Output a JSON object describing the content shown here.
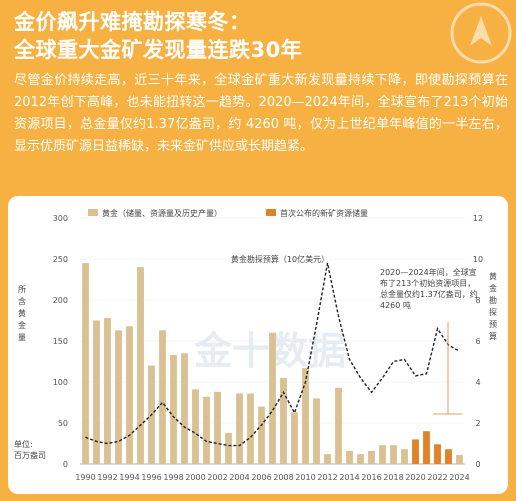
{
  "headline": {
    "line1": "金价飙升难掩勘探寒冬：",
    "line2": "全球重大金矿发现量连跌30年"
  },
  "lead_text": "尽管金价持续走高，近三十年来，全球金矿重大新发现量持续下降，即使勘探预算在2012年创下高峰，也未能扭转这一趋势。2020—2024年间，全球宣布了213个初始资源项目，总金量仅约1.37亿盎司，约 4260 吨，仅为上世纪单年峰值的一半左右，显示优质矿源日益稀缺，未来金矿供应或长期趋紧。",
  "watermark": "金十数据",
  "colors": {
    "background": "#f7b143",
    "bar_gold": "#d9c193",
    "bar_first": "#e0812b",
    "line": "#222222"
  },
  "chart_data": {
    "type": "bar",
    "legend": {
      "gold": "黄金（储量、资源量及历史产量）",
      "first": "首次公布的新矿资源储量"
    },
    "left_axis_label": "所含黄金量",
    "unit_label_1": "单位:",
    "unit_label_2": "百万盎司",
    "right_axis_label": "黄金勘探预算",
    "line_label": "黄金勘探预算（10亿美元）",
    "annotation_lines": [
      "2020—2024年间，全球宣",
      "布了213个初始资源项目，",
      "总金量仅约1.37亿盎司，约",
      "4260 吨"
    ],
    "left_ylim": [
      0,
      300
    ],
    "left_ticks": [
      "0",
      "50",
      "100",
      "150",
      "200",
      "250",
      "300"
    ],
    "right_ylim": [
      0,
      12
    ],
    "right_ticks": [
      "0",
      "2",
      "4",
      "6",
      "8",
      "10",
      "12"
    ],
    "x": [
      1990,
      1991,
      1992,
      1993,
      1994,
      1995,
      1996,
      1997,
      1998,
      1999,
      2000,
      2001,
      2002,
      2003,
      2004,
      2005,
      2006,
      2007,
      2008,
      2009,
      2010,
      2011,
      2012,
      2013,
      2014,
      2015,
      2016,
      2017,
      2018,
      2019,
      2020,
      2021,
      2022,
      2023,
      2024
    ],
    "x_tick_labels": [
      "1990",
      "1992",
      "1994",
      "1996",
      "1998",
      "2000",
      "2002",
      "2004",
      "2006",
      "2008",
      "2010",
      "2012",
      "2014",
      "2016",
      "2018",
      "2020",
      "2022",
      "2024"
    ],
    "gold_values": [
      245,
      175,
      178,
      163,
      168,
      240,
      120,
      163,
      133,
      135,
      91,
      82,
      88,
      38,
      86,
      86,
      70,
      160,
      105,
      63,
      117,
      80,
      12,
      93,
      16,
      12,
      16,
      23,
      23,
      18,
      12,
      15,
      15,
      10,
      11
    ],
    "first_values": [
      0,
      0,
      0,
      0,
      0,
      0,
      0,
      0,
      0,
      0,
      0,
      0,
      0,
      0,
      0,
      0,
      0,
      0,
      0,
      0,
      0,
      0,
      0,
      0,
      0,
      0,
      0,
      0,
      0,
      0,
      30,
      40,
      24,
      18,
      0
    ],
    "budget_values": [
      1.3,
      1.1,
      1.0,
      1.1,
      1.4,
      1.9,
      2.4,
      3.0,
      2.3,
      1.8,
      1.5,
      1.1,
      1.0,
      0.9,
      0.9,
      1.3,
      1.9,
      2.6,
      3.5,
      2.5,
      4.0,
      6.8,
      9.8,
      7.2,
      5.1,
      4.2,
      3.5,
      4.2,
      5.0,
      5.1,
      4.3,
      4.4,
      6.6,
      5.8,
      5.5
    ]
  }
}
